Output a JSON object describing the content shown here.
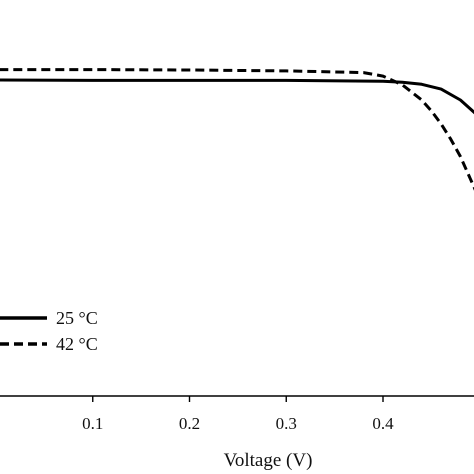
{
  "chart_data": {
    "type": "line",
    "title": "",
    "xlabel": "Voltage (V)",
    "ylabel": "",
    "xlim": [
      -0.04,
      0.5
    ],
    "x_ticks": [
      0.1,
      0.2,
      0.3,
      0.4
    ],
    "x_tick_labels": [
      "0.1",
      "0.2",
      "0.3",
      "0.4"
    ],
    "grid": false,
    "legend": "bottom-left",
    "series": [
      {
        "name": "25 °C",
        "style": "solid",
        "color": "#000000",
        "x": [
          -0.04,
          0.0,
          0.1,
          0.2,
          0.3,
          0.4,
          0.42,
          0.44,
          0.46,
          0.48,
          0.5
        ],
        "y": [
          0.976,
          0.976,
          0.975,
          0.975,
          0.975,
          0.973,
          0.971,
          0.966,
          0.955,
          0.93,
          0.89
        ]
      },
      {
        "name": "42 °C",
        "style": "dashed",
        "color": "#000000",
        "x": [
          -0.04,
          0.0,
          0.1,
          0.2,
          0.3,
          0.38,
          0.4,
          0.42,
          0.44,
          0.45,
          0.46,
          0.47,
          0.48,
          0.49,
          0.5
        ],
        "y": [
          1.0,
          1.0,
          1.0,
          0.999,
          0.997,
          0.993,
          0.985,
          0.965,
          0.93,
          0.905,
          0.875,
          0.84,
          0.8,
          0.75,
          0.7
        ]
      }
    ]
  }
}
